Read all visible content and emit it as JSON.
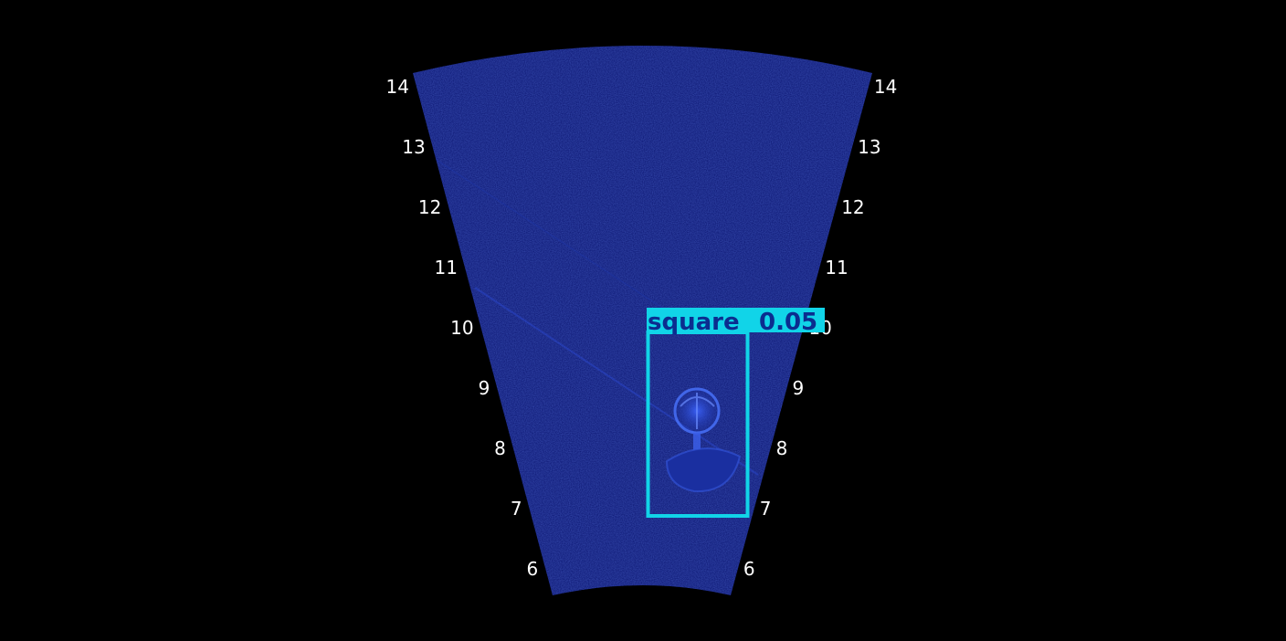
{
  "colors": {
    "background": "#000000",
    "sonar_fill": "#0a1470",
    "speckle": "#1d33b8",
    "detection": "#11d4e8",
    "detection_text": "#0b2d8f",
    "label_text": "#ffffff"
  },
  "range_labels": {
    "left": [
      "14",
      "13",
      "12",
      "11",
      "10",
      "9",
      "8",
      "7",
      "6"
    ],
    "right": [
      "14",
      "13",
      "12",
      "11",
      "10",
      "9",
      "8",
      "7",
      "6"
    ]
  },
  "detection": {
    "class": "square",
    "confidence": "0.05"
  }
}
